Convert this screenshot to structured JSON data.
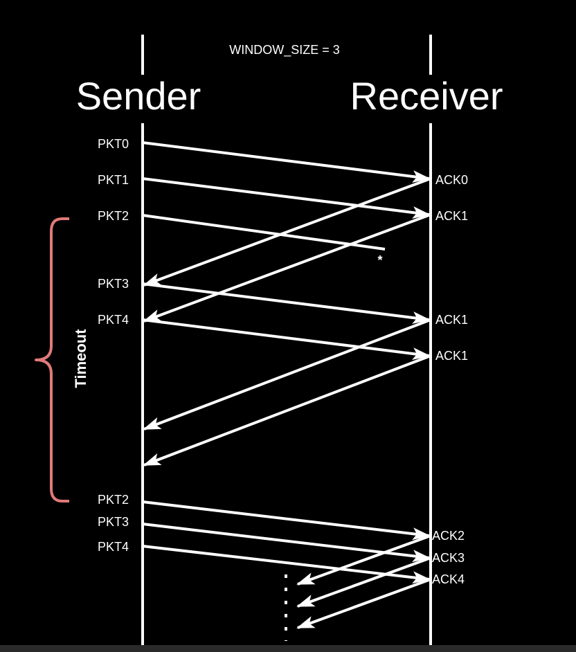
{
  "diagram": {
    "window_size_label": "WINDOW_SIZE = 3",
    "sender_label": "Sender",
    "receiver_label": "Receiver",
    "timeout_label": "Timeout",
    "packets": [
      "PKT0",
      "PKT1",
      "PKT2",
      "PKT3",
      "PKT4",
      "PKT2",
      "PKT3",
      "PKT4"
    ],
    "acks": [
      "ACK0",
      "ACK1",
      "ACK1",
      "ACK1",
      "ACK2",
      "ACK3",
      "ACK4"
    ],
    "lost_marker": "*",
    "colors": {
      "background": "#000000",
      "line": "#ffffff",
      "timeout_brace": "#e07a7a"
    }
  }
}
